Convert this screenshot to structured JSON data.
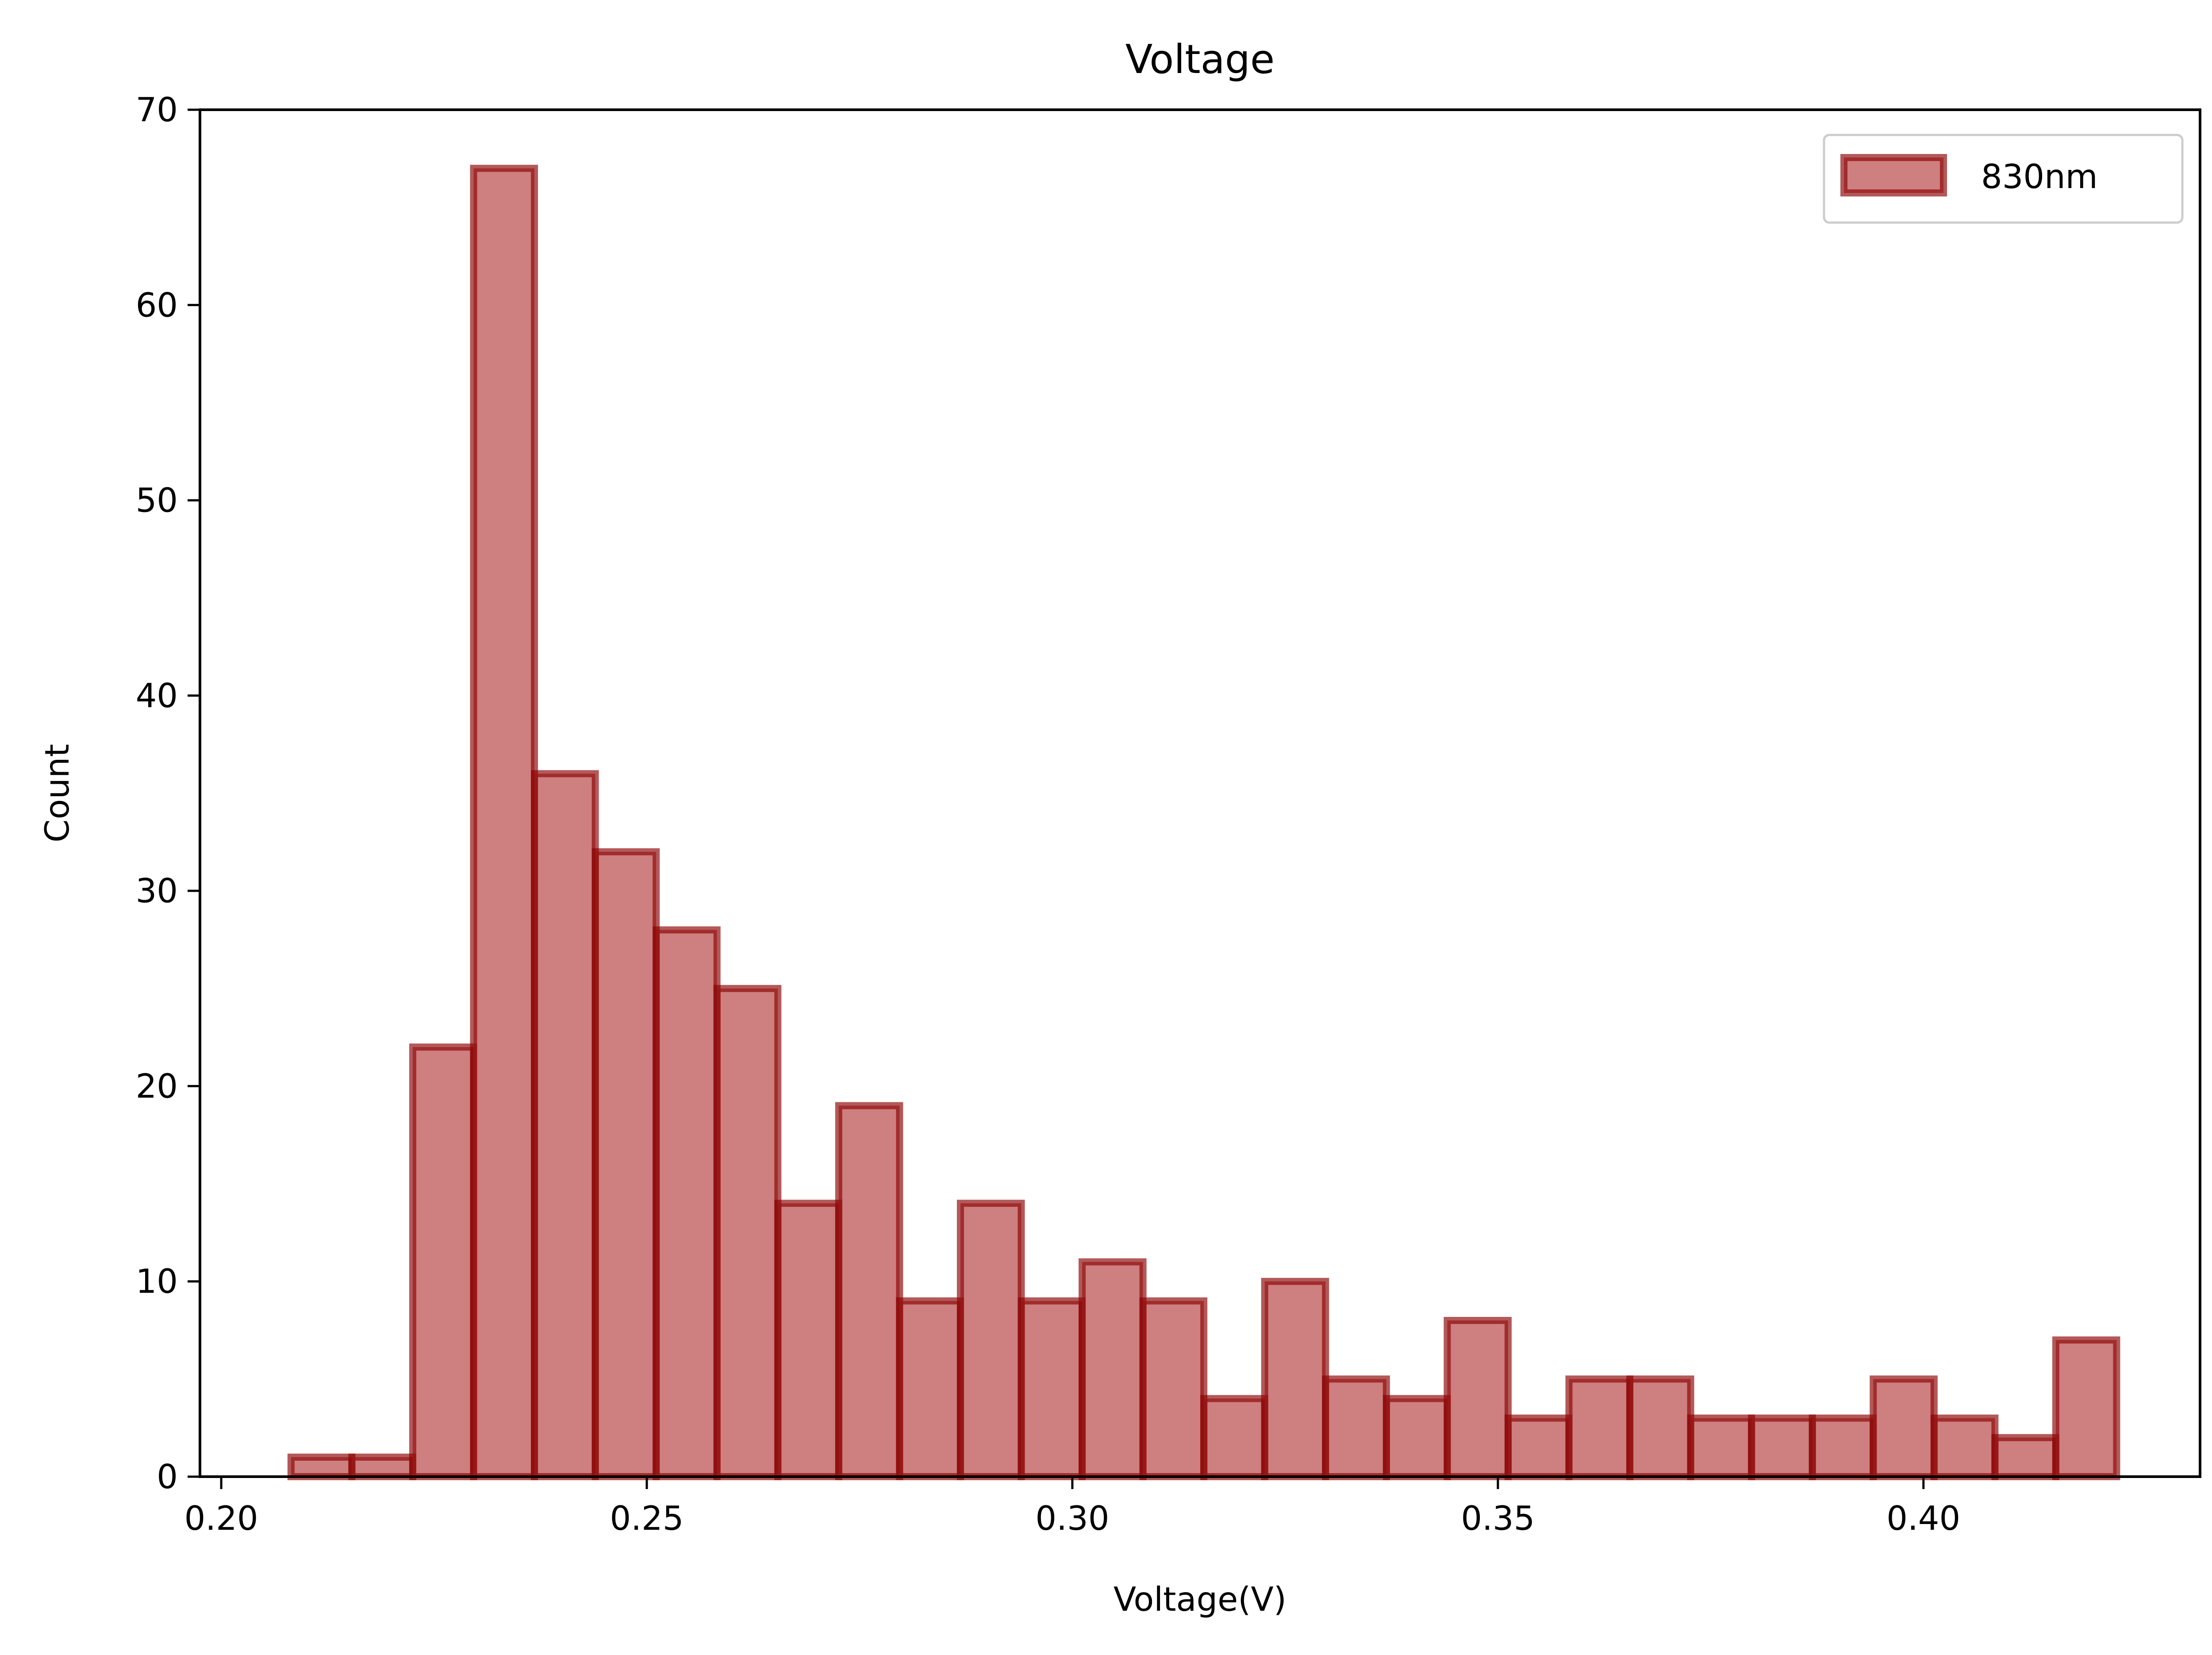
{
  "chart_data": {
    "type": "bar",
    "title": "Voltage",
    "xlabel": "Voltage(V)",
    "ylabel": "Count",
    "xlim": [
      0.1975,
      0.4325
    ],
    "ylim": [
      0,
      70
    ],
    "x_ticks": [
      0.2,
      0.25,
      0.3,
      0.35,
      0.4
    ],
    "x_tick_labels": [
      "0.20",
      "0.25",
      "0.30",
      "0.35",
      "0.40"
    ],
    "y_ticks": [
      0,
      10,
      20,
      30,
      40,
      50,
      60,
      70
    ],
    "y_tick_labels": [
      "0",
      "10",
      "20",
      "30",
      "40",
      "50",
      "60",
      "70"
    ],
    "grid": false,
    "legend_position": "top-right",
    "series": [
      {
        "name": "830nm",
        "color": "#b33a3a",
        "edge_color": "#8b0000",
        "bin_start": 0.2082,
        "bin_width": 0.00715,
        "values": [
          1,
          1,
          22,
          67,
          36,
          32,
          28,
          25,
          14,
          19,
          9,
          14,
          9,
          11,
          9,
          4,
          10,
          5,
          4,
          8,
          3,
          5,
          5,
          3,
          3,
          3,
          5,
          3,
          2,
          7
        ]
      }
    ]
  }
}
